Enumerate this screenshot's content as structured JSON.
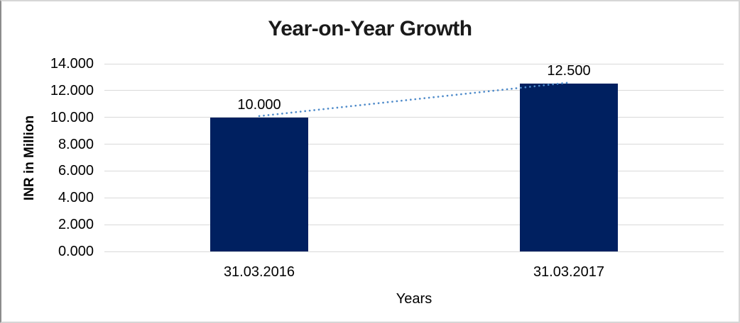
{
  "window": {
    "background": "#ffffff",
    "border_left_color": "#8c8c8c",
    "border_color": "#d6d6d6"
  },
  "chart_data": {
    "type": "bar",
    "title": "Year-on-Year Growth",
    "categories": [
      "31.03.2016",
      "31.03.2017"
    ],
    "values": [
      10000,
      12500
    ],
    "data_labels": [
      "10.000",
      "12.500"
    ],
    "xlabel": "Years",
    "ylabel": "INR in Million",
    "ylim": [
      0,
      14000
    ],
    "ytick_interval": 2000,
    "ytick_labels": [
      "0.000",
      "2.000",
      "4.000",
      "6.000",
      "8.000",
      "10.000",
      "12.000",
      "14.000"
    ],
    "grid": true,
    "legend": false,
    "trendline": {
      "type": "linear",
      "style": "dotted",
      "from_value": 10000,
      "to_value": 12500
    },
    "colors": {
      "bar": "#002060",
      "trendline": "#4f8bca",
      "gridline": "#d9d9d9",
      "title_text": "#1a1a1a",
      "label_text": "#000000"
    }
  }
}
